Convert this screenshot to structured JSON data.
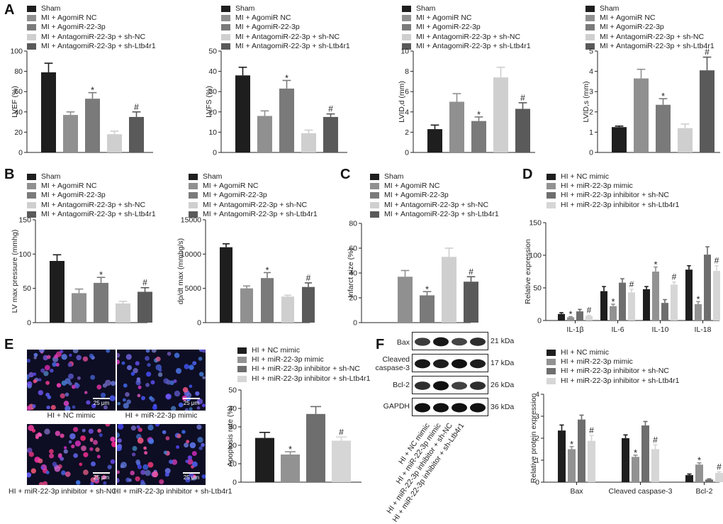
{
  "colors": {
    "sham": "#1e1e1e",
    "agomir_nc": "#909090",
    "agomir_223p": "#7a7a7a",
    "antagomir_shnc": "#cfcfcf",
    "antagomir_shltb": "#5a5a5a",
    "nc_mimic": "#1e1e1e",
    "mir_mimic": "#929292",
    "inhibitor_shnc": "#6e6e6e",
    "inhibitor_shltb": "#d6d6d6"
  },
  "panels": {
    "A": "A",
    "B": "B",
    "C": "C",
    "D": "D",
    "E": "E",
    "F": "F"
  },
  "legends": {
    "mi": [
      "Sham",
      "MI + AgomiR NC",
      "MI + AgomiR-22-3p",
      "MI + AntagomiR-22-3p + sh-NC",
      "MI + AntagomiR-22-3p + sh-Ltb4r1"
    ],
    "hi": [
      "HI + NC mimic",
      "HI + miR-22-3p mimic",
      "HI + miR-22-3p inhibitor + sh-NC",
      "HI + miR-22-3p inhibitor + sh-Ltb4r1"
    ]
  },
  "chart_data": [
    {
      "id": "A1",
      "type": "bar",
      "ylabel": "LVEF (%)",
      "ylim": [
        0,
        100
      ],
      "yticks": [
        0,
        20,
        40,
        60,
        80,
        100
      ],
      "categories": [
        "Sham",
        "MI + AgomiR NC",
        "MI + AgomiR-22-3p",
        "MI + AntagomiR-22-3p + sh-NC",
        "MI + AntagomiR-22-3p + sh-Ltb4r1"
      ],
      "values": [
        79,
        37,
        53,
        18,
        35
      ],
      "errors": [
        9,
        3,
        6,
        3,
        5
      ],
      "marks": [
        "",
        "",
        "*",
        "",
        "#"
      ]
    },
    {
      "id": "A2",
      "type": "bar",
      "ylabel": "LVFS (%)",
      "ylim": [
        0,
        50
      ],
      "yticks": [
        0,
        10,
        20,
        30,
        40,
        50
      ],
      "categories": [
        "Sham",
        "MI + AgomiR NC",
        "MI + AgomiR-22-3p",
        "MI + AntagomiR-22-3p + sh-NC",
        "MI + AntagomiR-22-3p + sh-Ltb4r1"
      ],
      "values": [
        38,
        18,
        31.5,
        9.5,
        17.5
      ],
      "errors": [
        4,
        2.5,
        4,
        1.5,
        1.5
      ],
      "marks": [
        "",
        "",
        "*",
        "",
        "#"
      ]
    },
    {
      "id": "A3",
      "type": "bar",
      "ylabel": "LVID,d (mm)",
      "ylim": [
        0,
        10
      ],
      "yticks": [
        0,
        2,
        4,
        6,
        8,
        10
      ],
      "categories": [
        "Sham",
        "MI + AgomiR NC",
        "MI + AgomiR-22-3p",
        "MI + AntagomiR-22-3p + sh-NC",
        "MI + AntagomiR-22-3p + sh-Ltb4r1"
      ],
      "values": [
        2.3,
        5.0,
        3.1,
        7.4,
        4.3
      ],
      "errors": [
        0.4,
        0.8,
        0.4,
        1.0,
        0.6
      ],
      "marks": [
        "",
        "",
        "*",
        "",
        "#"
      ]
    },
    {
      "id": "A4",
      "type": "bar",
      "ylabel": "LVID,s (mm)",
      "ylim": [
        0,
        5
      ],
      "yticks": [
        0,
        1,
        2,
        3,
        4,
        5
      ],
      "categories": [
        "Sham",
        "MI + AgomiR NC",
        "MI + AgomiR-22-3p",
        "MI + AntagomiR-22-3p + sh-NC",
        "MI + AntagomiR-22-3p + sh-Ltb4r1"
      ],
      "values": [
        1.25,
        3.65,
        2.35,
        1.2,
        4.05
      ],
      "errors": [
        0.05,
        0.45,
        0.3,
        0.2,
        0.65
      ],
      "marks": [
        "",
        "",
        "*",
        "",
        "#"
      ]
    },
    {
      "id": "B1",
      "type": "bar",
      "ylabel": "LV max pressure (mmhg)",
      "ylim": [
        0,
        150
      ],
      "yticks": [
        0,
        50,
        100,
        150
      ],
      "categories": [
        "Sham",
        "MI + AgomiR NC",
        "MI + AgomiR-22-3p",
        "MI + AntagomiR-22-3p + sh-NC",
        "MI + AntagomiR-22-3p + sh-Ltb4r1"
      ],
      "values": [
        90,
        43,
        58,
        28,
        45
      ],
      "errors": [
        9,
        6,
        8,
        3,
        6
      ],
      "marks": [
        "",
        "",
        "*",
        "",
        "#"
      ]
    },
    {
      "id": "B2",
      "type": "bar",
      "ylabel": "dp/dt max (mmhg/s)",
      "ylim": [
        0,
        15000
      ],
      "yticks": [
        0,
        5000,
        10000,
        15000
      ],
      "categories": [
        "Sham",
        "MI + AgomiR NC",
        "MI + AgomiR-22-3p",
        "MI + AntagomiR-22-3p + sh-NC",
        "MI + AntagomiR-22-3p + sh-Ltb4r1"
      ],
      "values": [
        11000,
        5000,
        6500,
        3800,
        5200
      ],
      "errors": [
        500,
        350,
        800,
        200,
        600
      ],
      "marks": [
        "",
        "",
        "*",
        "",
        "#"
      ]
    },
    {
      "id": "C",
      "type": "bar",
      "ylabel": "Infarct size (%)",
      "ylim": [
        0,
        80
      ],
      "yticks": [
        0,
        20,
        40,
        60,
        80
      ],
      "categories": [
        "Sham",
        "MI + AgomiR NC",
        "MI + AgomiR-22-3p",
        "MI + AntagomiR-22-3p + sh-NC",
        "MI + AntagomiR-22-3p + sh-Ltb4r1"
      ],
      "values": [
        0,
        37,
        22,
        53,
        33
      ],
      "errors": [
        0,
        5,
        3,
        7,
        4
      ],
      "marks": [
        "",
        "",
        "*",
        "",
        "#"
      ]
    },
    {
      "id": "D",
      "type": "bar",
      "ylabel": "Relative expression",
      "ylim": [
        0,
        150
      ],
      "yticks": [
        0,
        50,
        100,
        150
      ],
      "categories": [
        "IL-1β",
        "IL-6",
        "IL-10",
        "IL-18"
      ],
      "series": [
        {
          "name": "HI + NC mimic",
          "values": [
            10,
            45,
            48,
            78
          ],
          "errors": [
            2,
            7,
            4,
            6
          ],
          "marks": [
            "",
            "",
            "",
            ""
          ]
        },
        {
          "name": "HI + miR-22-3p mimic",
          "values": [
            5,
            22,
            75,
            25
          ],
          "errors": [
            1,
            3,
            7,
            4
          ],
          "marks": [
            "*",
            "*",
            "*",
            "*"
          ]
        },
        {
          "name": "HI + miR-22-3p inhibitor + sh-NC",
          "values": [
            14,
            58,
            27,
            101
          ],
          "errors": [
            3,
            6,
            5,
            12
          ],
          "marks": [
            "",
            "",
            "",
            ""
          ]
        },
        {
          "name": "HI + miR-22-3p inhibitor + sh-Ltb4r1",
          "values": [
            7,
            43,
            55,
            76
          ],
          "errors": [
            1,
            5,
            4,
            8
          ],
          "marks": [
            "#",
            "#",
            "#",
            "#"
          ]
        }
      ]
    },
    {
      "id": "E",
      "type": "bar",
      "ylabel": "Apoptosis rate (%)",
      "ylim": [
        0,
        50
      ],
      "yticks": [
        0,
        10,
        20,
        30,
        40,
        50
      ],
      "categories": [
        "HI + NC mimic",
        "HI + miR-22-3p mimic",
        "HI + miR-22-3p inhibitor + sh-NC",
        "HI + miR-22-3p inhibitor + sh-Ltb4r1"
      ],
      "values": [
        24,
        15,
        37,
        22.5
      ],
      "errors": [
        3,
        1.5,
        4,
        2
      ],
      "marks": [
        "",
        "*",
        "",
        "#"
      ]
    },
    {
      "id": "F",
      "type": "bar",
      "ylabel": "Relative protein expression",
      "ylim": [
        0,
        4
      ],
      "yticks": [
        0,
        1,
        2,
        3,
        4
      ],
      "categories": [
        "Bax",
        "Cleaved caspase-3",
        "Bcl-2"
      ],
      "series": [
        {
          "name": "HI + NC mimic",
          "values": [
            2.35,
            2.0,
            0.32
          ],
          "errors": [
            0.25,
            0.15,
            0.05
          ],
          "marks": [
            "",
            "",
            ""
          ]
        },
        {
          "name": "HI + miR-22-3p mimic",
          "values": [
            1.5,
            1.15,
            0.8
          ],
          "errors": [
            0.12,
            0.08,
            0.08
          ],
          "marks": [
            "*",
            "*",
            "*"
          ]
        },
        {
          "name": "HI + miR-22-3p inhibitor + sh-NC",
          "values": [
            2.85,
            2.58,
            0.12
          ],
          "errors": [
            0.2,
            0.18,
            0.03
          ],
          "marks": [
            "",
            "",
            ""
          ]
        },
        {
          "name": "HI + miR-22-3p inhibitor + sh-Ltb4r1",
          "values": [
            1.88,
            1.5,
            0.42
          ],
          "errors": [
            0.25,
            0.2,
            0.05
          ],
          "marks": [
            "#",
            "#",
            "#"
          ]
        }
      ]
    }
  ],
  "micrographs": {
    "captions": [
      "HI + NC mimic",
      "HI + miR-22-3p mimic",
      "HI + miR-22-3p inhibitor + sh-NC",
      "HI + miR-22-3p inhibitor + sh-Ltb4r1"
    ],
    "scale": "25 μm"
  },
  "western": {
    "proteins": [
      "Bax",
      "Cleaved caspase-3",
      "Bcl-2",
      "GAPDH"
    ],
    "protein_lines": [
      [
        "Bax"
      ],
      [
        "Cleaved",
        "caspase-3"
      ],
      [
        "Bcl-2"
      ],
      [
        "GAPDH"
      ]
    ],
    "sizes": [
      "21 kDa",
      "17 kDa",
      "26 kDa",
      "36 kDa"
    ],
    "lanes": [
      "HI + NC mimic",
      "HI + miR-22-3p mimic",
      "HI + miR-22-3p inhibitor + sh-NC",
      "HI + miR-22-3p inhibitor + sh-Ltb4r1"
    ]
  }
}
